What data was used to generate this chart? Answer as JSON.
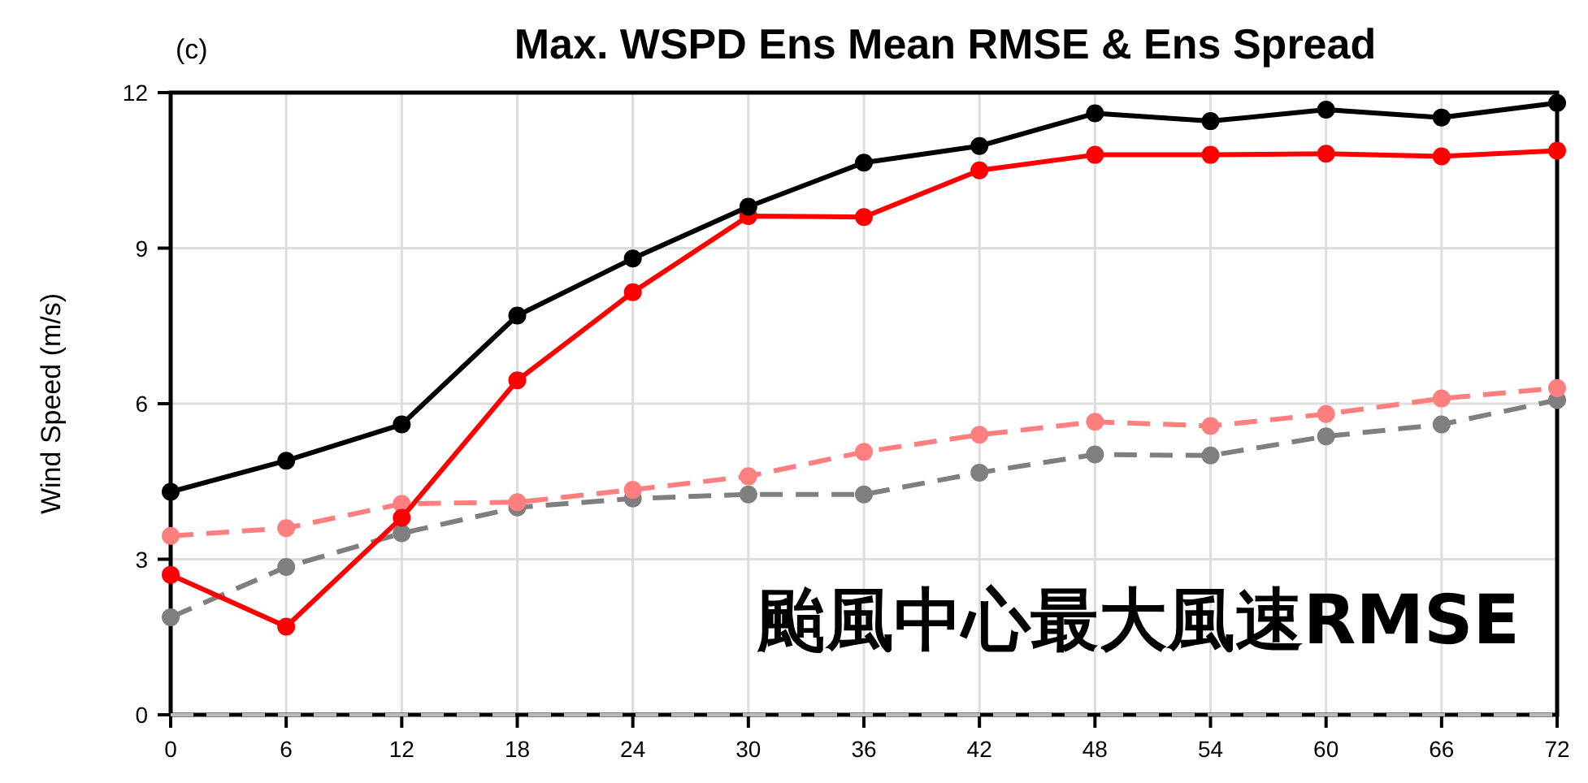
{
  "chart_data": {
    "type": "line",
    "title": "Max. WSPD Ens Mean RMSE & Ens Spread",
    "ylabel": "Wind Speed (m/s)",
    "annotations": [
      "(c)",
      "颱風中心最大風速RMSE"
    ],
    "x": [
      0,
      6,
      12,
      18,
      24,
      30,
      36,
      42,
      48,
      54,
      60,
      66,
      72
    ],
    "xlim": [
      0,
      72
    ],
    "xticks": [
      0,
      6,
      12,
      18,
      24,
      30,
      36,
      42,
      48,
      54,
      60,
      66,
      72
    ],
    "ylim": [
      0,
      12
    ],
    "yticks": [
      0,
      3,
      6,
      9,
      12
    ],
    "grid": true,
    "marker": "circle",
    "ref_lines": [
      {
        "axis": "y",
        "value": 0,
        "color": "#bbbbbb",
        "line_style": "dashed"
      }
    ],
    "series": [
      {
        "color": "#000000",
        "line_style": "solid",
        "values": [
          4.3,
          4.9,
          5.6,
          7.7,
          8.8,
          9.8,
          10.65,
          10.97,
          11.6,
          11.45,
          11.67,
          11.52,
          11.8
        ]
      },
      {
        "color": "#ff0000",
        "line_style": "solid",
        "values": [
          2.7,
          1.7,
          3.8,
          6.45,
          8.15,
          9.62,
          9.6,
          10.5,
          10.8,
          10.8,
          10.82,
          10.77,
          10.88
        ]
      },
      {
        "color": "#ff7f7f",
        "line_style": "dashed",
        "values": [
          3.45,
          3.6,
          4.07,
          4.1,
          4.34,
          4.6,
          5.07,
          5.4,
          5.65,
          5.57,
          5.8,
          6.1,
          6.3
        ]
      },
      {
        "color": "#7f7f7f",
        "line_style": "dashed",
        "values": [
          1.88,
          2.85,
          3.5,
          4.0,
          4.17,
          4.25,
          4.25,
          4.67,
          5.02,
          5.0,
          5.37,
          5.6,
          6.07
        ]
      }
    ]
  }
}
